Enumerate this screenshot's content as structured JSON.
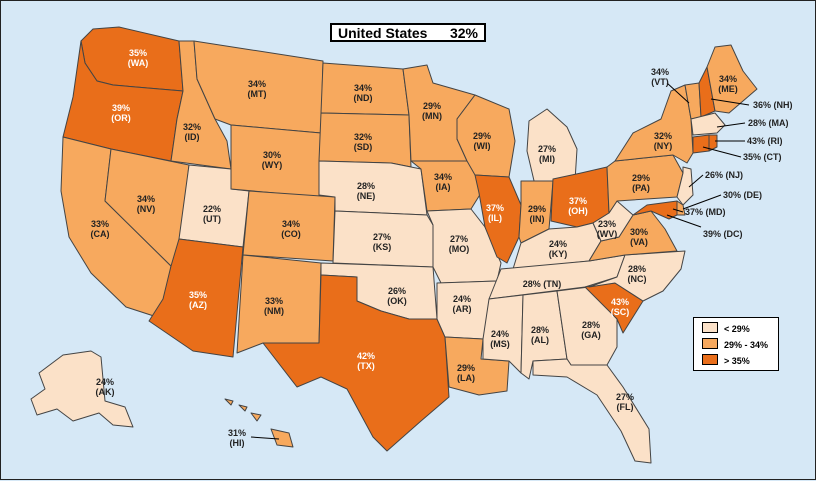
{
  "title": {
    "name": "United States",
    "value": "32%"
  },
  "colors": {
    "low": "#fbe1c8",
    "mid": "#f7a95e",
    "high": "#e96e1a",
    "water": "#d6e8f6",
    "border": "#444444"
  },
  "legend": [
    {
      "label": "< 29%",
      "color": "#fbe1c8"
    },
    {
      "label": "29% - 34%",
      "color": "#f7a95e"
    },
    {
      "label": "> 35%",
      "color": "#e96e1a"
    }
  ],
  "states": {
    "WA": {
      "pct": "35%",
      "abbr": "(WA)",
      "bucket": "high"
    },
    "OR": {
      "pct": "39%",
      "abbr": "(OR)",
      "bucket": "high"
    },
    "CA": {
      "pct": "33%",
      "abbr": "(CA)",
      "bucket": "mid"
    },
    "ID": {
      "pct": "32%",
      "abbr": "(ID)",
      "bucket": "mid"
    },
    "NV": {
      "pct": "34%",
      "abbr": "(NV)",
      "bucket": "mid"
    },
    "UT": {
      "pct": "22%",
      "abbr": "(UT)",
      "bucket": "low"
    },
    "AZ": {
      "pct": "35%",
      "abbr": "(AZ)",
      "bucket": "high"
    },
    "MT": {
      "pct": "34%",
      "abbr": "(MT)",
      "bucket": "mid"
    },
    "WY": {
      "pct": "30%",
      "abbr": "(WY)",
      "bucket": "mid"
    },
    "CO": {
      "pct": "34%",
      "abbr": "(CO)",
      "bucket": "mid"
    },
    "NM": {
      "pct": "33%",
      "abbr": "(NM)",
      "bucket": "mid"
    },
    "ND": {
      "pct": "34%",
      "abbr": "(ND)",
      "bucket": "mid"
    },
    "SD": {
      "pct": "32%",
      "abbr": "(SD)",
      "bucket": "mid"
    },
    "NE": {
      "pct": "28%",
      "abbr": "(NE)",
      "bucket": "low"
    },
    "KS": {
      "pct": "27%",
      "abbr": "(KS)",
      "bucket": "low"
    },
    "OK": {
      "pct": "26%",
      "abbr": "(OK)",
      "bucket": "low"
    },
    "TX": {
      "pct": "42%",
      "abbr": "(TX)",
      "bucket": "high"
    },
    "MN": {
      "pct": "29%",
      "abbr": "(MN)",
      "bucket": "mid"
    },
    "IA": {
      "pct": "34%",
      "abbr": "(IA)",
      "bucket": "mid"
    },
    "MO": {
      "pct": "27%",
      "abbr": "(MO)",
      "bucket": "low"
    },
    "AR": {
      "pct": "24%",
      "abbr": "(AR)",
      "bucket": "low"
    },
    "LA": {
      "pct": "29%",
      "abbr": "(LA)",
      "bucket": "mid"
    },
    "WI": {
      "pct": "29%",
      "abbr": "(WI)",
      "bucket": "mid"
    },
    "IL": {
      "pct": "37%",
      "abbr": "(IL)",
      "bucket": "high"
    },
    "MI": {
      "pct": "27%",
      "abbr": "(MI)",
      "bucket": "low"
    },
    "IN": {
      "pct": "29%",
      "abbr": "(IN)",
      "bucket": "mid"
    },
    "OH": {
      "pct": "37%",
      "abbr": "(OH)",
      "bucket": "high"
    },
    "KY": {
      "pct": "24%",
      "abbr": "(KY)",
      "bucket": "low"
    },
    "TN": {
      "pct": "28%",
      "abbr": "(TN)",
      "bucket": "low"
    },
    "MS": {
      "pct": "24%",
      "abbr": "(MS)",
      "bucket": "low"
    },
    "AL": {
      "pct": "28%",
      "abbr": "(AL)",
      "bucket": "low"
    },
    "GA": {
      "pct": "28%",
      "abbr": "(GA)",
      "bucket": "low"
    },
    "FL": {
      "pct": "27%",
      "abbr": "(FL)",
      "bucket": "low"
    },
    "SC": {
      "pct": "43%",
      "abbr": "(SC)",
      "bucket": "high"
    },
    "NC": {
      "pct": "28%",
      "abbr": "(NC)",
      "bucket": "low"
    },
    "VA": {
      "pct": "30%",
      "abbr": "(VA)",
      "bucket": "mid"
    },
    "WV": {
      "pct": "23%",
      "abbr": "(WV)",
      "bucket": "low"
    },
    "PA": {
      "pct": "29%",
      "abbr": "(PA)",
      "bucket": "mid"
    },
    "NY": {
      "pct": "32%",
      "abbr": "(NY)",
      "bucket": "mid"
    },
    "ME": {
      "pct": "34%",
      "abbr": "(ME)",
      "bucket": "mid"
    },
    "VT": {
      "pct": "34%",
      "abbr": "(VT)",
      "bucket": "mid"
    },
    "NH": {
      "text": "36% (NH)",
      "bucket": "high"
    },
    "MA": {
      "text": "28% (MA)",
      "bucket": "low"
    },
    "RI": {
      "text": "43% (RI)",
      "bucket": "high"
    },
    "CT": {
      "text": "35% (CT)",
      "bucket": "high"
    },
    "NJ": {
      "text": "26% (NJ)",
      "bucket": "low"
    },
    "DE": {
      "text": "30% (DE)",
      "bucket": "mid"
    },
    "MD": {
      "text": "37% (MD)",
      "bucket": "high"
    },
    "DC": {
      "text": "39% (DC)",
      "bucket": "high"
    },
    "AK": {
      "pct": "24%",
      "abbr": "(AK)",
      "bucket": "low"
    },
    "HI": {
      "pct": "31%",
      "abbr": "(HI)",
      "bucket": "mid"
    }
  }
}
